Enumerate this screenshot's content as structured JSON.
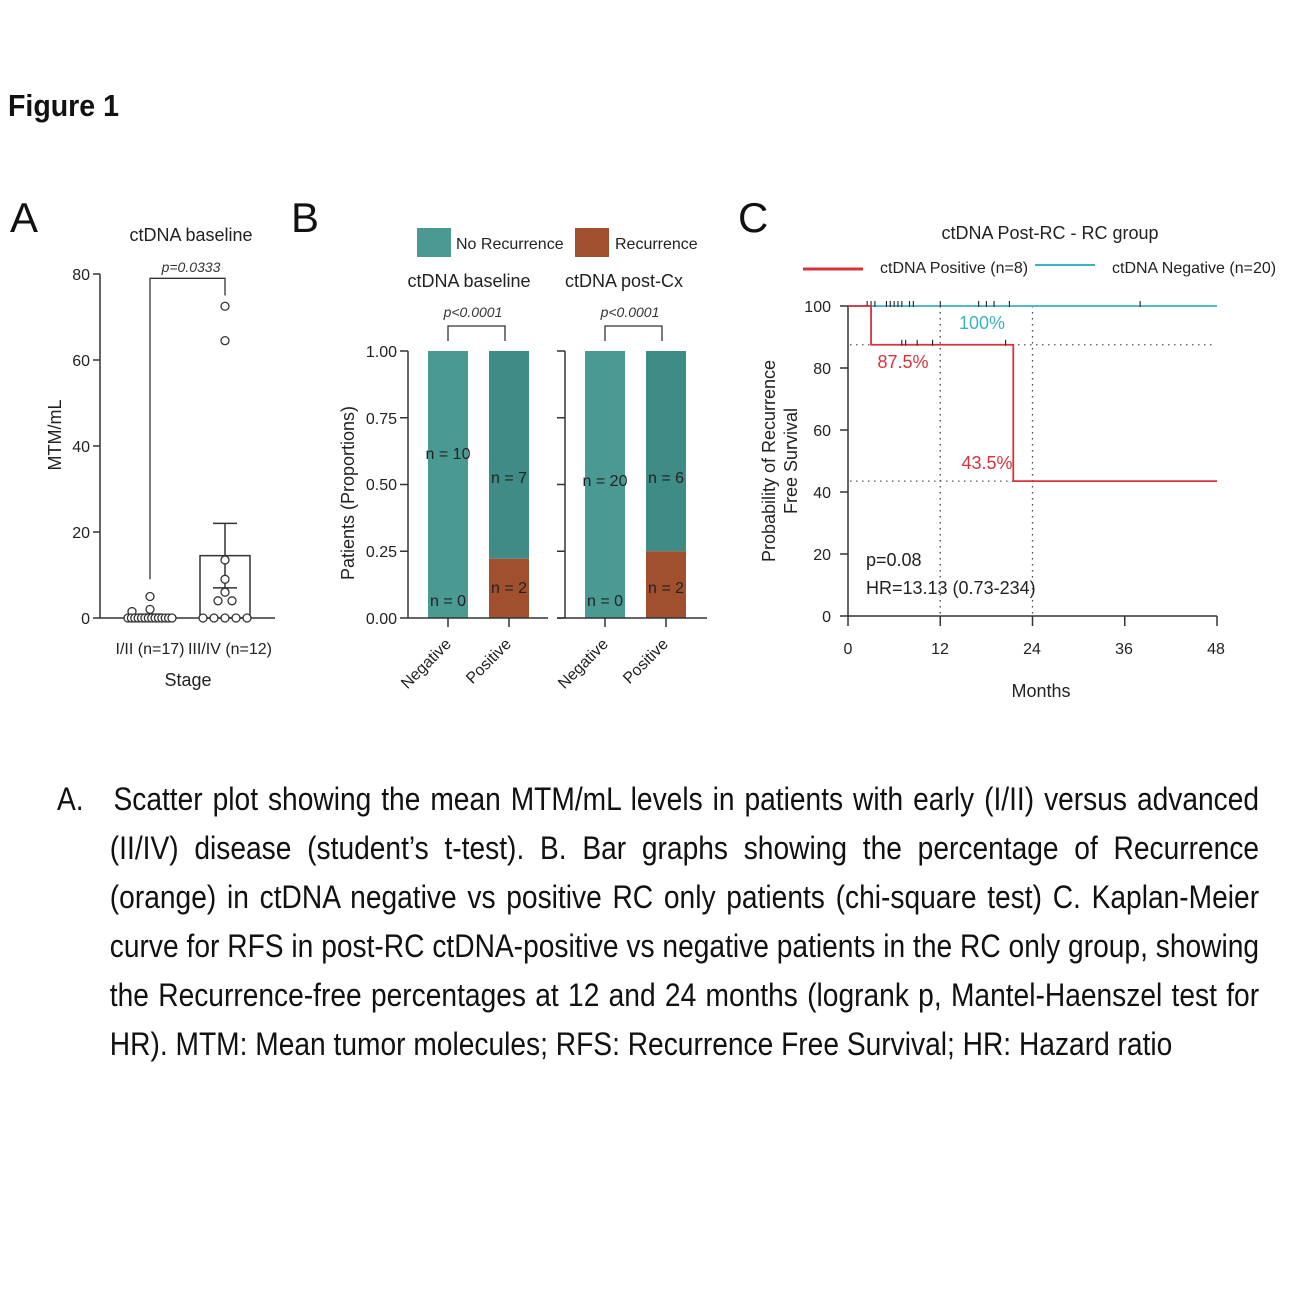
{
  "figure_title": "Figure 1",
  "caption": "A.   Scatter plot showing the mean MTM/mL levels in patients with early (I/II) versus advanced (II/IV) disease (student’s t-test). B. Bar graphs showing the percentage of Recurrence (orange) in ctDNA negative vs positive RC only patients (chi-square test) C. Kaplan-Meier curve for RFS in post-RC ctDNA-positive vs negative patients in the RC only group, showing the Recurrence-free percentages at 12 and 24 months (logrank p, Mantel-Haenszel test for HR). MTM: Mean tumor molecules; RFS: Recurrence Free Survival; HR: Hazard ratio",
  "chart_data": [
    {
      "panel": "A",
      "type": "scatter",
      "title": "ctDNA baseline",
      "ylabel": "MTM/mL",
      "xlabel": "Stage",
      "ylim": [
        0,
        80
      ],
      "yticks": [
        "0",
        "20",
        "40",
        "60",
        "80"
      ],
      "categories": [
        "I/II (n=17)",
        "III/IV (n=12)"
      ],
      "points": [
        [
          5,
          2,
          1.5,
          0,
          0,
          0,
          0,
          0,
          0,
          0,
          0,
          0,
          0,
          0,
          0,
          0,
          0
        ],
        [
          72.5,
          64.5,
          13.5,
          9,
          6,
          4,
          4,
          0,
          0,
          0,
          0,
          0
        ]
      ],
      "means": [
        0.5,
        14.5
      ],
      "sem": [
        0.4,
        7.5
      ],
      "p_label": "p=0.0333",
      "colors": {
        "marker": "#333333",
        "fill": "#ffffff"
      }
    },
    {
      "panel": "B",
      "type": "bar",
      "stacked": true,
      "ylabel": "Patients (Proportions)",
      "ylim": [
        0,
        1
      ],
      "yticks": [
        "0.00",
        "0.25",
        "0.50",
        "0.75",
        "1.00"
      ],
      "legend": [
        {
          "label": "No Recurrence",
          "color": "#4a9a93"
        },
        {
          "label": "Recurrence",
          "color": "#a0502e"
        }
      ],
      "subplots": [
        {
          "title": "ctDNA baseline",
          "p_label": "p<0.0001",
          "categories": [
            "Negative",
            "Positive"
          ],
          "series": [
            {
              "name": "Recurrence",
              "values": [
                0,
                0.222
              ],
              "labels": [
                "n = 0",
                "n = 2"
              ]
            },
            {
              "name": "No Recurrence",
              "values": [
                1,
                0.778
              ],
              "labels": [
                "n = 10",
                "n = 7"
              ]
            }
          ]
        },
        {
          "title": "ctDNA post-Cx",
          "p_label": "p<0.0001",
          "categories": [
            "Negative",
            "Positive"
          ],
          "series": [
            {
              "name": "Recurrence",
              "values": [
                0,
                0.25
              ],
              "labels": [
                "n = 0",
                "n = 2"
              ]
            },
            {
              "name": "No Recurrence",
              "values": [
                1,
                0.75
              ],
              "labels": [
                "n = 20",
                "n = 6"
              ]
            }
          ]
        }
      ]
    },
    {
      "panel": "C",
      "type": "line",
      "title": "ctDNA Post-RC - RC group",
      "ylabel_lines": [
        "Probability of Recurrence",
        "Free Survival"
      ],
      "xlabel": "Months",
      "xlim": [
        0,
        48
      ],
      "ylim": [
        0,
        100
      ],
      "xticks": [
        "0",
        "12",
        "24",
        "36",
        "48"
      ],
      "yticks": [
        "0",
        "20",
        "40",
        "60",
        "80",
        "100"
      ],
      "series": [
        {
          "name": "ctDNA Positive (n=8)",
          "color": "#d9323c",
          "steps": [
            [
              0,
              100
            ],
            [
              3,
              100
            ],
            [
              3,
              87.5
            ],
            [
              21.5,
              87.5
            ],
            [
              21.5,
              43.5
            ],
            [
              48,
              43.5
            ]
          ],
          "censored": [
            7,
            7.5,
            9,
            11,
            20.5
          ]
        },
        {
          "name": "ctDNA Negative (n=20)",
          "color": "#3cb3c0",
          "steps": [
            [
              0,
              100
            ],
            [
              48,
              100
            ]
          ],
          "censored": [
            2.5,
            3,
            3.5,
            5,
            5.5,
            6,
            6.5,
            7,
            8,
            8.5,
            12,
            17,
            18,
            19,
            21,
            38
          ]
        }
      ],
      "reference_lines": {
        "x": [
          12,
          24
        ],
        "y": [
          87.5,
          43.5
        ]
      },
      "annotations": {
        "neg_12": "100%",
        "pos_12": "87.5%",
        "pos_24": "43.5%",
        "p": "p=0.08",
        "hr": "HR=13.13 (0.73-234)"
      }
    }
  ],
  "panel_letters": [
    "A",
    "B",
    "C"
  ]
}
